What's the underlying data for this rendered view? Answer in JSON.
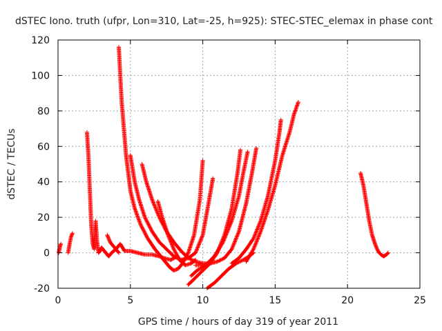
{
  "chart_data": {
    "type": "scatter",
    "title": "dSTEC Iono. truth (ufpr, Lon=310, Lat=-25, h=925): STEC-STEC_elemax in phase cont",
    "xlabel": "GPS time / hours of day 319 of year 2011",
    "ylabel": "dSTEC  / TECUs",
    "xlim": [
      0,
      25
    ],
    "ylim": [
      -20,
      120
    ],
    "x_ticks": [
      "0",
      "5",
      "10",
      "15",
      "20",
      "25"
    ],
    "y_ticks": [
      "-20",
      "0",
      "20",
      "40",
      "60",
      "80",
      "100",
      "120"
    ],
    "grid": true,
    "marker": "plus",
    "color": "#ff0000",
    "tracks": [
      {
        "points": [
          [
            0.05,
            0
          ],
          [
            0.1,
            2
          ],
          [
            0.15,
            4
          ],
          [
            0.2,
            5
          ]
        ]
      },
      {
        "points": [
          [
            0.7,
            0
          ],
          [
            0.8,
            5
          ],
          [
            0.9,
            9
          ],
          [
            1.0,
            11
          ]
        ]
      },
      {
        "points": [
          [
            2.0,
            68
          ],
          [
            2.1,
            55
          ],
          [
            2.2,
            35
          ],
          [
            2.3,
            15
          ],
          [
            2.4,
            5
          ],
          [
            2.5,
            2
          ]
        ]
      },
      {
        "points": [
          [
            2.5,
            3
          ],
          [
            2.6,
            18
          ],
          [
            2.7,
            6
          ],
          [
            2.8,
            0
          ],
          [
            2.9,
            1
          ],
          [
            3.0,
            3
          ],
          [
            3.1,
            2
          ],
          [
            3.3,
            0
          ],
          [
            3.5,
            -2
          ],
          [
            3.7,
            0
          ],
          [
            4.0,
            2
          ],
          [
            4.3,
            5
          ],
          [
            4.6,
            1
          ],
          [
            5.0,
            1
          ],
          [
            5.5,
            0
          ],
          [
            6.0,
            -1
          ],
          [
            6.5,
            -1
          ],
          [
            7.0,
            -2
          ],
          [
            7.3,
            -3
          ]
        ]
      },
      {
        "points": [
          [
            3.4,
            10
          ],
          [
            3.6,
            6
          ],
          [
            3.8,
            4
          ],
          [
            4.0,
            2
          ],
          [
            4.2,
            0
          ]
        ]
      },
      {
        "points": [
          [
            4.2,
            116
          ],
          [
            4.3,
            100
          ],
          [
            4.4,
            85
          ],
          [
            4.55,
            70
          ],
          [
            4.7,
            55
          ],
          [
            4.85,
            45
          ],
          [
            5.0,
            35
          ],
          [
            5.3,
            25
          ],
          [
            5.7,
            16
          ],
          [
            6.2,
            8
          ],
          [
            6.7,
            2
          ],
          [
            7.2,
            -3
          ],
          [
            7.7,
            -8
          ],
          [
            8.0,
            -10
          ],
          [
            8.3,
            -9
          ],
          [
            8.6,
            -6
          ],
          [
            9.0,
            0
          ],
          [
            9.4,
            10
          ],
          [
            9.8,
            30
          ],
          [
            10.0,
            52
          ]
        ]
      },
      {
        "points": [
          [
            5.0,
            55
          ],
          [
            5.3,
            40
          ],
          [
            5.6,
            30
          ],
          [
            6.0,
            20
          ],
          [
            6.5,
            12
          ],
          [
            7.0,
            6
          ],
          [
            7.5,
            2
          ],
          [
            8.0,
            -2
          ],
          [
            8.5,
            -4
          ],
          [
            9.0,
            -3
          ],
          [
            9.5,
            0
          ],
          [
            10.0,
            10
          ],
          [
            10.4,
            28
          ],
          [
            10.7,
            42
          ]
        ]
      },
      {
        "points": [
          [
            5.8,
            50
          ],
          [
            6.1,
            40
          ],
          [
            6.5,
            30
          ],
          [
            7.0,
            20
          ],
          [
            7.5,
            12
          ],
          [
            8.0,
            6
          ],
          [
            8.5,
            1
          ],
          [
            9.0,
            -3
          ],
          [
            9.5,
            -5
          ],
          [
            10.0,
            -6
          ],
          [
            10.5,
            -6
          ]
        ]
      },
      {
        "points": [
          [
            6.9,
            29
          ],
          [
            7.2,
            20
          ],
          [
            7.6,
            10
          ],
          [
            8.0,
            2
          ],
          [
            8.4,
            -4
          ],
          [
            8.8,
            -7
          ],
          [
            9.2,
            -6
          ],
          [
            9.5,
            -4
          ]
        ]
      },
      {
        "points": [
          [
            7.3,
            -3
          ],
          [
            7.8,
            -4
          ],
          [
            8.2,
            -2
          ],
          [
            8.5,
            -5
          ]
        ]
      },
      {
        "points": [
          [
            9.0,
            -18
          ],
          [
            9.5,
            -14
          ],
          [
            10.0,
            -10
          ],
          [
            10.5,
            -6
          ],
          [
            11.0,
            0
          ],
          [
            11.5,
            10
          ],
          [
            12.0,
            25
          ],
          [
            12.4,
            45
          ],
          [
            12.6,
            58
          ]
        ]
      },
      {
        "points": [
          [
            9.2,
            -13
          ],
          [
            9.6,
            -10
          ],
          [
            10.2,
            -7
          ],
          [
            10.8,
            -2
          ],
          [
            11.4,
            6
          ],
          [
            12.0,
            18
          ],
          [
            12.5,
            32
          ],
          [
            12.8,
            45
          ],
          [
            13.1,
            57
          ]
        ]
      },
      {
        "points": [
          [
            9.5,
            -7
          ],
          [
            10.0,
            -7
          ],
          [
            10.5,
            -6
          ],
          [
            11.0,
            -5
          ],
          [
            11.5,
            -3
          ],
          [
            12.0,
            2
          ],
          [
            12.5,
            12
          ],
          [
            13.0,
            28
          ],
          [
            13.4,
            45
          ],
          [
            13.7,
            59
          ]
        ]
      },
      {
        "points": [
          [
            10.3,
            -20
          ],
          [
            10.8,
            -17
          ],
          [
            11.3,
            -13
          ],
          [
            11.8,
            -9
          ],
          [
            12.3,
            -6
          ],
          [
            12.8,
            -4
          ],
          [
            13.2,
            -2
          ],
          [
            13.5,
            0
          ]
        ]
      },
      {
        "points": [
          [
            12.0,
            -6
          ],
          [
            12.5,
            -3
          ],
          [
            13.0,
            2
          ],
          [
            13.5,
            8
          ],
          [
            14.0,
            18
          ],
          [
            14.5,
            32
          ],
          [
            15.0,
            52
          ],
          [
            15.3,
            68
          ],
          [
            15.4,
            75
          ]
        ]
      },
      {
        "points": [
          [
            13.0,
            -5
          ],
          [
            13.5,
            2
          ],
          [
            14.0,
            12
          ],
          [
            14.5,
            24
          ],
          [
            15.0,
            38
          ],
          [
            15.5,
            55
          ],
          [
            16.0,
            68
          ],
          [
            16.3,
            78
          ],
          [
            16.6,
            85
          ]
        ]
      },
      {
        "points": [
          [
            20.9,
            45
          ],
          [
            21.1,
            38
          ],
          [
            21.3,
            28
          ],
          [
            21.5,
            18
          ],
          [
            21.7,
            10
          ],
          [
            21.9,
            5
          ],
          [
            22.1,
            1
          ],
          [
            22.3,
            -1
          ],
          [
            22.5,
            -2
          ],
          [
            22.7,
            -1
          ],
          [
            22.8,
            0
          ]
        ]
      }
    ]
  }
}
